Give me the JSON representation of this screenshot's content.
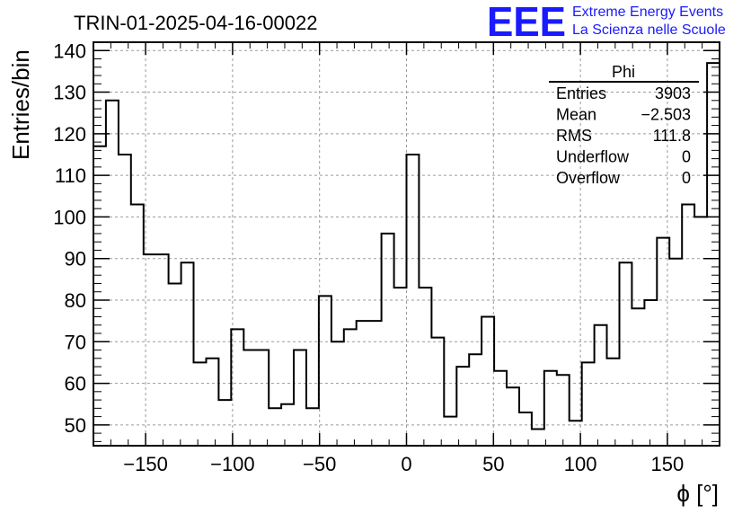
{
  "title": "TRIN-01-2025-04-16-00022",
  "logo": {
    "mark": "EEE",
    "line1": "Extreme Energy Events",
    "line2": "La Scienza nelle Scuole",
    "color": "#1a1aff"
  },
  "stats": {
    "name": "Phi",
    "rows": [
      {
        "label": "Entries",
        "value": "3903"
      },
      {
        "label": "Mean",
        "value": "−2.503"
      },
      {
        "label": "RMS",
        "value": "111.8"
      },
      {
        "label": "Underflow",
        "value": "0"
      },
      {
        "label": "Overflow",
        "value": "0"
      }
    ]
  },
  "chart_data": {
    "type": "histogram",
    "title": "TRIN-01-2025-04-16-00022",
    "xlabel": "ϕ [°]",
    "ylabel": "Entries/bin",
    "xlim": [
      -180,
      180
    ],
    "ylim": [
      45,
      142
    ],
    "bin_width": 7.2,
    "bin_edges_start": -180,
    "values": [
      117,
      128,
      115,
      103,
      91,
      91,
      84,
      89,
      65,
      66,
      56,
      73,
      68,
      68,
      54,
      55,
      68,
      54,
      81,
      70,
      73,
      75,
      75,
      96,
      83,
      115,
      83,
      71,
      52,
      64,
      67,
      76,
      63,
      59,
      53,
      49,
      63,
      62,
      51,
      65,
      74,
      66,
      89,
      78,
      80,
      95,
      90,
      103,
      100,
      137
    ],
    "xticks": [
      -150,
      -100,
      -50,
      0,
      50,
      100,
      150
    ],
    "xtick_labels": [
      "−150",
      "−100",
      "−50",
      "0",
      "50",
      "100",
      "150"
    ],
    "yticks": [
      50,
      60,
      70,
      80,
      90,
      100,
      110,
      120,
      130,
      140
    ],
    "ytick_labels": [
      "50",
      "60",
      "70",
      "80",
      "90",
      "100",
      "110",
      "120",
      "130",
      "140"
    ],
    "grid": true,
    "line_color": "#000000"
  }
}
